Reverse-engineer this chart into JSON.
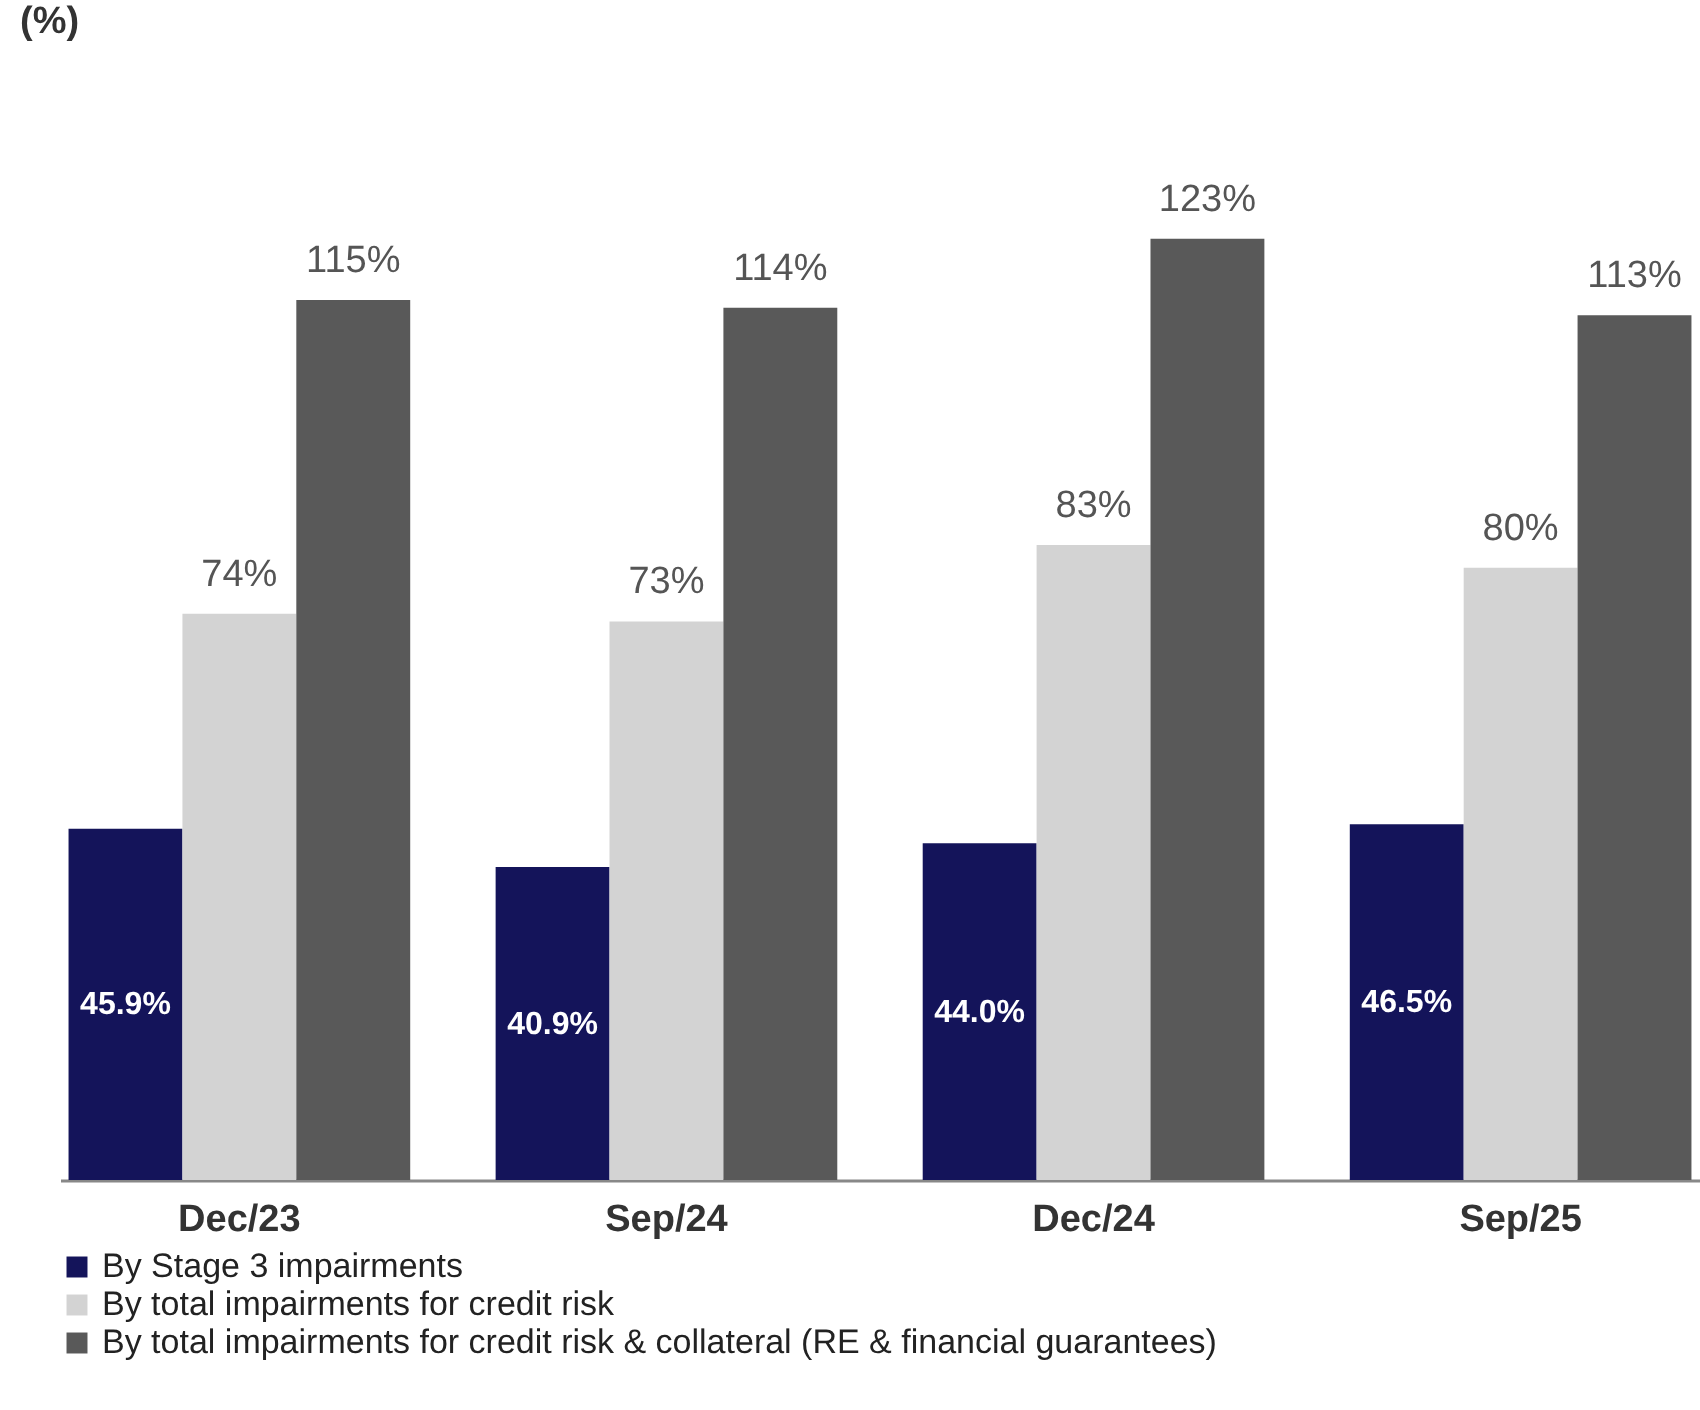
{
  "chart_data": {
    "type": "bar",
    "title": "(%)",
    "categories": [
      "Dec/23",
      "Sep/24",
      "Dec/24",
      "Sep/25"
    ],
    "series": [
      {
        "name": "By Stage 3 impairments",
        "color": "#14145a",
        "values": [
          45.9,
          40.9,
          44.0,
          46.5
        ],
        "value_labels": [
          "45.9%",
          "40.9%",
          "44.0%",
          "46.5%"
        ]
      },
      {
        "name": "By total impairments for credit risk",
        "color": "#d3d3d3",
        "values": [
          74,
          73,
          83,
          80
        ],
        "value_labels": [
          "74%",
          "73%",
          "83%",
          "80%"
        ]
      },
      {
        "name": "By total impairments for credit risk & collateral (RE & financial guarantees)",
        "color": "#595959",
        "values": [
          115,
          114,
          123,
          113
        ],
        "value_labels": [
          "115%",
          "114%",
          "123%",
          "113%"
        ]
      }
    ],
    "legend": "bottom"
  }
}
